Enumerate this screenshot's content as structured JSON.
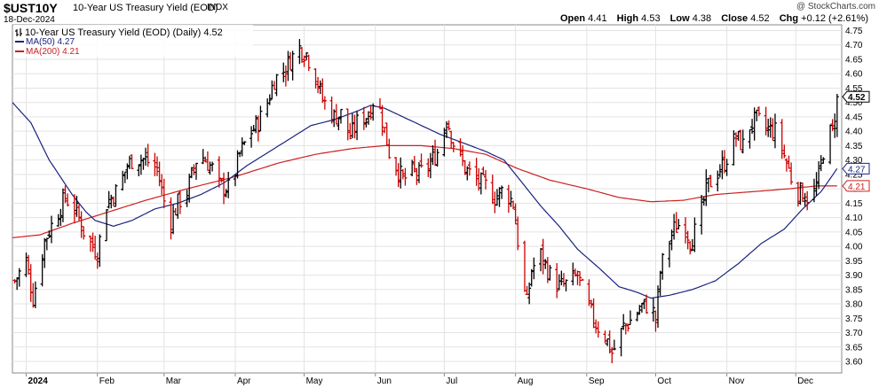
{
  "header": {
    "symbol": "$UST10Y",
    "description": "10-Year US Treasury Yield (EOD)",
    "exchange": "INDX",
    "date": "18-Dec-2024",
    "watermark": "@ StockCharts.com",
    "open_label": "Open",
    "open": "4.41",
    "high_label": "High",
    "high": "4.53",
    "low_label": "Low",
    "low": "4.38",
    "close_label": "Close",
    "close": "4.52",
    "chg_label": "Chg",
    "chg": "+0.12 (+2.61%)"
  },
  "legend": {
    "main": "10-Year US Treasury Yield (EOD) (Daily) 4.52",
    "ma50": "MA(50) 4.27",
    "ma200": "MA(200) 4.21"
  },
  "colors": {
    "up": "#000000",
    "down": "#cc0000",
    "ma50": "#1a237e",
    "ma200": "#cc1f1f",
    "grid": "#e3e3e3",
    "border": "#888888"
  },
  "chart_data": {
    "type": "line",
    "title": "10-Year US Treasury Yield (EOD) (Daily) 4.52",
    "ylim": [
      3.56,
      4.77
    ],
    "yticks": [
      3.6,
      3.65,
      3.7,
      3.75,
      3.8,
      3.85,
      3.9,
      3.95,
      4.0,
      4.05,
      4.1,
      4.15,
      4.2,
      4.25,
      4.3,
      4.35,
      4.4,
      4.45,
      4.5,
      4.55,
      4.6,
      4.65,
      4.7,
      4.75
    ],
    "ytick_labels": [
      "3.60",
      "3.65",
      "3.70",
      "3.75",
      "3.80",
      "3.85",
      "3.90",
      "3.95",
      "4.00",
      "4.05",
      "4.10",
      "4.15",
      "4.20",
      "4.25",
      "4.30",
      "4.35",
      "4.40",
      "4.45",
      "4.50",
      "4.55",
      "4.60",
      "4.65",
      "4.70",
      "4.75"
    ],
    "xticks": [
      {
        "label": "2024",
        "day": 0
      },
      {
        "label": "Feb",
        "day": 31
      },
      {
        "label": "Mar",
        "day": 60
      },
      {
        "label": "Apr",
        "day": 91
      },
      {
        "label": "May",
        "day": 121
      },
      {
        "label": "Jun",
        "day": 152
      },
      {
        "label": "Jul",
        "day": 182
      },
      {
        "label": "Aug",
        "day": 213
      },
      {
        "label": "Sep",
        "day": 244
      },
      {
        "label": "Oct",
        "day": 274
      },
      {
        "label": "Nov",
        "day": 305
      },
      {
        "label": "Dec",
        "day": 335
      }
    ],
    "xlim_days": [
      -6,
      355
    ],
    "last_value_label": "4.52",
    "ma50_label": "4.27",
    "ma200_label": "4.21",
    "close_anchors": [
      [
        -5,
        3.88
      ],
      [
        0,
        3.95
      ],
      [
        3,
        3.82
      ],
      [
        8,
        4.02
      ],
      [
        12,
        4.09
      ],
      [
        17,
        4.17
      ],
      [
        22,
        4.12
      ],
      [
        26,
        4.03
      ],
      [
        31,
        3.98
      ],
      [
        35,
        4.15
      ],
      [
        40,
        4.2
      ],
      [
        44,
        4.28
      ],
      [
        47,
        4.31
      ],
      [
        52,
        4.3
      ],
      [
        57,
        4.27
      ],
      [
        61,
        4.12
      ],
      [
        63,
        4.09
      ],
      [
        66,
        4.15
      ],
      [
        70,
        4.19
      ],
      [
        74,
        4.3
      ],
      [
        77,
        4.31
      ],
      [
        81,
        4.27
      ],
      [
        84,
        4.21
      ],
      [
        89,
        4.2
      ],
      [
        93,
        4.32
      ],
      [
        97,
        4.39
      ],
      [
        101,
        4.43
      ],
      [
        105,
        4.5
      ],
      [
        108,
        4.58
      ],
      [
        112,
        4.61
      ],
      [
        116,
        4.66
      ],
      [
        119,
        4.69
      ],
      [
        122,
        4.67
      ],
      [
        126,
        4.59
      ],
      [
        129,
        4.51
      ],
      [
        134,
        4.45
      ],
      [
        137,
        4.46
      ],
      [
        141,
        4.38
      ],
      [
        144,
        4.43
      ],
      [
        149,
        4.46
      ],
      [
        152,
        4.53
      ],
      [
        155,
        4.44
      ],
      [
        159,
        4.29
      ],
      [
        161,
        4.28
      ],
      [
        164,
        4.23
      ],
      [
        168,
        4.26
      ],
      [
        171,
        4.25
      ],
      [
        175,
        4.28
      ],
      [
        180,
        4.34
      ],
      [
        183,
        4.45
      ],
      [
        186,
        4.36
      ],
      [
        191,
        4.27
      ],
      [
        196,
        4.23
      ],
      [
        200,
        4.21
      ],
      [
        204,
        4.17
      ],
      [
        208,
        4.2
      ],
      [
        212,
        4.15
      ],
      [
        214,
        4.02
      ],
      [
        216,
        3.87
      ],
      [
        218,
        3.8
      ],
      [
        220,
        3.92
      ],
      [
        224,
        3.97
      ],
      [
        228,
        3.9
      ],
      [
        232,
        3.86
      ],
      [
        236,
        3.87
      ],
      [
        240,
        3.9
      ],
      [
        244,
        3.8
      ],
      [
        248,
        3.73
      ],
      [
        252,
        3.69
      ],
      [
        255,
        3.63
      ],
      [
        257,
        3.66
      ],
      [
        260,
        3.72
      ],
      [
        264,
        3.75
      ],
      [
        268,
        3.79
      ],
      [
        272,
        3.8
      ],
      [
        274,
        3.74
      ],
      [
        276,
        3.91
      ],
      [
        278,
        3.98
      ],
      [
        282,
        4.06
      ],
      [
        286,
        4.09
      ],
      [
        289,
        4.02
      ],
      [
        293,
        4.08
      ],
      [
        296,
        4.2
      ],
      [
        300,
        4.25
      ],
      [
        304,
        4.29
      ],
      [
        306,
        4.33
      ],
      [
        309,
        4.38
      ],
      [
        312,
        4.35
      ],
      [
        315,
        4.42
      ],
      [
        318,
        4.44
      ],
      [
        322,
        4.41
      ],
      [
        326,
        4.4
      ],
      [
        329,
        4.34
      ],
      [
        333,
        4.24
      ],
      [
        336,
        4.19
      ],
      [
        339,
        4.18
      ],
      [
        342,
        4.16
      ],
      [
        345,
        4.24
      ],
      [
        348,
        4.38
      ],
      [
        351,
        4.4
      ],
      [
        353,
        4.52
      ]
    ],
    "last_bar": {
      "open": 4.41,
      "high": 4.53,
      "low": 4.38,
      "close": 4.52
    },
    "ma50_anchors": [
      [
        -6,
        4.5
      ],
      [
        2,
        4.43
      ],
      [
        10,
        4.3
      ],
      [
        20,
        4.18
      ],
      [
        26,
        4.12
      ],
      [
        30,
        4.09
      ],
      [
        38,
        4.07
      ],
      [
        46,
        4.09
      ],
      [
        56,
        4.13
      ],
      [
        66,
        4.15
      ],
      [
        76,
        4.18
      ],
      [
        86,
        4.22
      ],
      [
        96,
        4.28
      ],
      [
        104,
        4.32
      ],
      [
        114,
        4.37
      ],
      [
        124,
        4.42
      ],
      [
        134,
        4.44
      ],
      [
        144,
        4.47
      ],
      [
        150,
        4.49
      ],
      [
        156,
        4.48
      ],
      [
        164,
        4.45
      ],
      [
        172,
        4.42
      ],
      [
        180,
        4.39
      ],
      [
        190,
        4.36
      ],
      [
        200,
        4.33
      ],
      [
        208,
        4.3
      ],
      [
        216,
        4.22
      ],
      [
        224,
        4.14
      ],
      [
        232,
        4.07
      ],
      [
        240,
        3.99
      ],
      [
        250,
        3.92
      ],
      [
        258,
        3.86
      ],
      [
        266,
        3.84
      ],
      [
        272,
        3.82
      ],
      [
        280,
        3.83
      ],
      [
        290,
        3.85
      ],
      [
        300,
        3.88
      ],
      [
        310,
        3.94
      ],
      [
        320,
        4.01
      ],
      [
        330,
        4.06
      ],
      [
        338,
        4.13
      ],
      [
        346,
        4.19
      ],
      [
        353,
        4.27
      ]
    ],
    "ma200_anchors": [
      [
        -6,
        4.03
      ],
      [
        6,
        4.04
      ],
      [
        20,
        4.08
      ],
      [
        36,
        4.12
      ],
      [
        52,
        4.16
      ],
      [
        70,
        4.2
      ],
      [
        90,
        4.24
      ],
      [
        110,
        4.29
      ],
      [
        126,
        4.32
      ],
      [
        142,
        4.34
      ],
      [
        156,
        4.35
      ],
      [
        172,
        4.35
      ],
      [
        186,
        4.34
      ],
      [
        200,
        4.32
      ],
      [
        214,
        4.27
      ],
      [
        228,
        4.23
      ],
      [
        244,
        4.2
      ],
      [
        258,
        4.17
      ],
      [
        272,
        4.155
      ],
      [
        286,
        4.16
      ],
      [
        300,
        4.18
      ],
      [
        316,
        4.19
      ],
      [
        332,
        4.2
      ],
      [
        344,
        4.21
      ],
      [
        353,
        4.21
      ]
    ]
  }
}
